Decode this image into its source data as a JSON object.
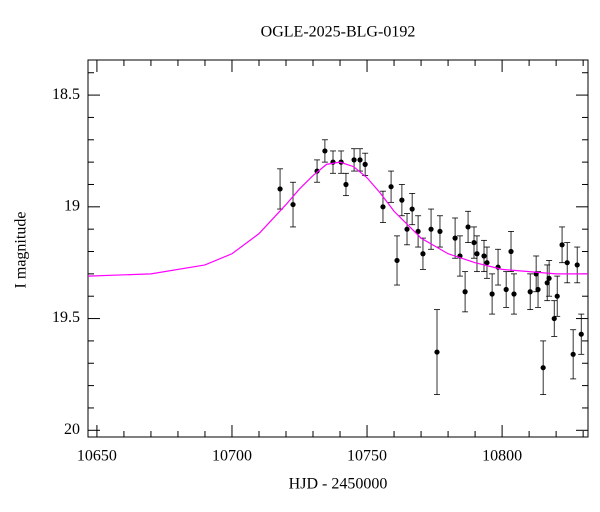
{
  "chart_data": {
    "type": "scatter",
    "title": "OGLE-2025-BLG-0192",
    "x_label": "HJD - 2450000",
    "y_label": "I magnitude",
    "xlim": [
      10646.7,
      10831.8
    ],
    "ylim": [
      18.343,
      20.03
    ],
    "y_inverted": true,
    "xticks": [
      10650,
      10700,
      10750,
      10800
    ],
    "yticks": [
      18.5,
      19,
      19.5,
      20
    ],
    "xminorticks": [
      10660,
      10670,
      10680,
      10690,
      10710,
      10720,
      10730,
      10740,
      10760,
      10770,
      10780,
      10790,
      10810,
      10820,
      10830
    ],
    "yminorticks": [
      18.4,
      18.6,
      18.7,
      18.8,
      18.9,
      19.1,
      19.2,
      19.3,
      19.4,
      19.6,
      19.7,
      19.8,
      19.9
    ],
    "series": [
      {
        "kind": "points",
        "color": "#000000",
        "x": [
          10717.8,
          10722.6,
          10731.5,
          10734.4,
          10737.4,
          10740.4,
          10742.2,
          10745.2,
          10747.4,
          10749.3,
          10755.9,
          10758.9,
          10761.1,
          10762.9,
          10764.8,
          10766.7,
          10768.9,
          10770.7,
          10773.7,
          10775.9,
          10777.0,
          10782.6,
          10784.4,
          10786.3,
          10787.4,
          10789.6,
          10790.7,
          10793.3,
          10794.4,
          10796.3,
          10798.5,
          10801.5,
          10803.3,
          10804.4,
          10810.4,
          10812.6,
          10813.3,
          10815.2,
          10816.7,
          10817.4,
          10819.3,
          10820.4,
          10822.2,
          10824.1,
          10826.3,
          10827.8,
          10829.3
        ],
        "values": [
          18.92,
          18.99,
          18.84,
          18.75,
          18.8,
          18.8,
          18.9,
          18.79,
          18.79,
          18.81,
          19.0,
          18.91,
          19.24,
          18.97,
          19.1,
          19.01,
          19.11,
          19.21,
          19.1,
          19.65,
          19.11,
          19.14,
          19.22,
          19.38,
          19.09,
          19.16,
          19.21,
          19.22,
          19.25,
          19.39,
          19.27,
          19.37,
          19.2,
          19.39,
          19.38,
          19.3,
          19.37,
          19.72,
          19.34,
          19.32,
          19.5,
          19.4,
          19.17,
          19.25,
          19.66,
          19.26,
          19.57
        ],
        "yerr": [
          0.09,
          0.1,
          0.05,
          0.05,
          0.05,
          0.05,
          0.05,
          0.05,
          0.05,
          0.05,
          0.07,
          0.07,
          0.11,
          0.07,
          0.07,
          0.07,
          0.07,
          0.07,
          0.09,
          0.19,
          0.07,
          0.09,
          0.09,
          0.09,
          0.07,
          0.07,
          0.08,
          0.07,
          0.07,
          0.09,
          0.08,
          0.08,
          0.09,
          0.09,
          0.08,
          0.08,
          0.08,
          0.12,
          0.08,
          0.08,
          0.08,
          0.09,
          0.08,
          0.09,
          0.11,
          0.08,
          0.09
        ]
      },
      {
        "kind": "line",
        "color": "#ff00ff",
        "x": [
          10646.7,
          10670,
          10690,
          10700,
          10710,
          10720,
          10725,
          10730,
          10735,
          10740,
          10745,
          10750,
          10755,
          10760,
          10770,
          10780,
          10790,
          10800,
          10810,
          10820,
          10831.8
        ],
        "values": [
          19.31,
          19.3,
          19.26,
          19.21,
          19.12,
          18.99,
          18.92,
          18.86,
          18.81,
          18.8,
          18.82,
          18.87,
          18.94,
          19.02,
          19.14,
          19.21,
          19.25,
          19.28,
          19.29,
          19.3,
          19.3
        ]
      }
    ]
  }
}
